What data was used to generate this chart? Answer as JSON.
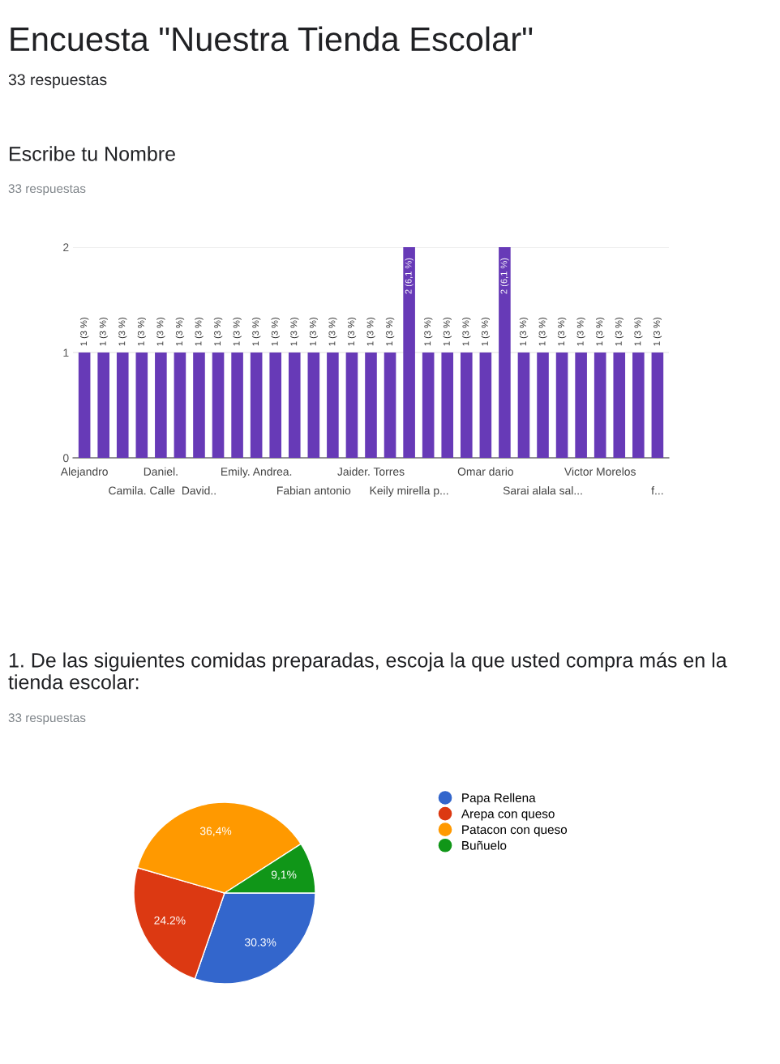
{
  "chart_data": [
    {
      "type": "bar",
      "title": "Escribe tu Nombre",
      "subtitle": "33 respuestas",
      "annotations": [
        "Encuesta \"Nuestra Tienda Escolar\"",
        "33 respuestas"
      ],
      "categories": [
        "Alejandro",
        null,
        null,
        "Camila. Calle",
        "Daniel.",
        null,
        "David..",
        null,
        null,
        "Emily. Andrea.",
        null,
        null,
        "Fabian antonio",
        null,
        null,
        "Jaider. Torres",
        null,
        "Keily mirella p...",
        null,
        null,
        null,
        "Omar dario",
        null,
        null,
        "Sarai alala sal...",
        null,
        null,
        "Victor Morelos",
        null,
        null,
        "f..."
      ],
      "values": [
        1,
        1,
        1,
        1,
        1,
        1,
        1,
        1,
        1,
        1,
        1,
        1,
        1,
        1,
        1,
        1,
        1,
        2,
        1,
        1,
        1,
        1,
        2,
        1,
        1,
        1,
        1,
        1,
        1,
        1,
        1
      ],
      "value_labels": [
        "1 (3 %)",
        "1 (3 %)",
        "1 (3 %)",
        "1 (3 %)",
        "1 (3 %)",
        "1 (3 %)",
        "1 (3 %)",
        "1 (3 %)",
        "1 (3 %)",
        "1 (3 %)",
        "1 (3 %)",
        "1 (3 %)",
        "1 (3 %)",
        "1 (3 %)",
        "1 (3 %)",
        "1 (3 %)",
        "1 (3 %)",
        "2 (6,1 %)",
        "1 (3 %)",
        "1 (3 %)",
        "1 (3 %)",
        "1 (3 %)",
        "2 (6,1 %)",
        "1 (3 %)",
        "1 (3 %)",
        "1 (3 %)",
        "1 (3 %)",
        "1 (3 %)",
        "1 (3 %)",
        "1 (3 %)",
        "1 (3 %)"
      ],
      "color": "#673ab7",
      "ylim": [
        0,
        2
      ],
      "yticks": [
        0,
        1,
        2
      ],
      "grid": "y"
    },
    {
      "type": "pie",
      "title": "1. De las siguientes comidas preparadas, escoja la que usted compra más en la tienda escolar:",
      "subtitle": "33 respuestas",
      "categories": [
        "Papa Rellena",
        "Arepa con queso",
        "Patacon con queso",
        "Buñuelo"
      ],
      "values": [
        30.3,
        24.2,
        36.4,
        9.1
      ],
      "value_labels": [
        "30.3%",
        "24.2%",
        "36,4%",
        "9,1%"
      ],
      "colors": [
        "#3366cc",
        "#dc3912",
        "#ff9900",
        "#109618"
      ],
      "legend": "right"
    }
  ]
}
